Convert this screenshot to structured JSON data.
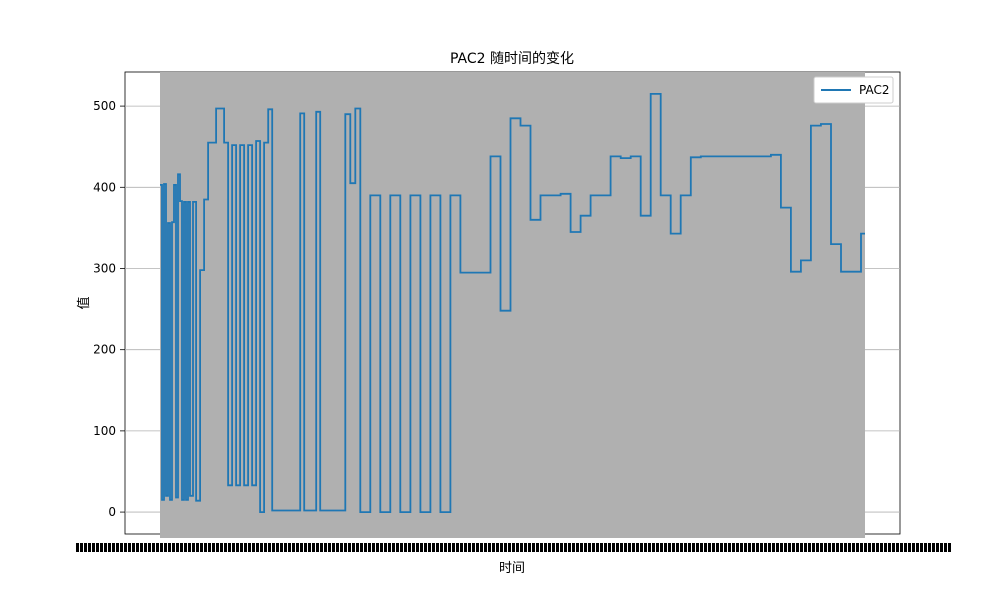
{
  "chart_data": {
    "type": "line",
    "title": "PAC2 随时间的变化",
    "xlabel": "时间",
    "ylabel": "值",
    "ylim": [
      -27,
      542
    ],
    "yticks": [
      0,
      100,
      200,
      300,
      400,
      500
    ],
    "grid": "horizontal",
    "legend_placement": "top-right",
    "colors": {
      "series": "#1f77b4",
      "xtick_band": "#b0b0b0",
      "grid": "#b0b0b0"
    },
    "series": [
      {
        "name": "PAC2",
        "x": [
          0,
          2,
          4,
          6,
          8,
          10,
          12,
          14,
          16,
          18,
          20,
          22,
          24,
          26,
          28,
          30,
          33,
          36,
          40,
          44,
          48,
          52,
          56,
          60,
          64,
          68,
          72,
          76,
          80,
          84,
          88,
          92,
          96,
          100,
          104,
          108,
          112,
          116,
          120,
          124,
          128,
          132,
          136,
          140,
          144,
          148,
          152,
          156,
          160,
          165,
          170,
          175,
          180,
          185,
          190,
          195,
          200,
          210,
          220,
          230,
          240,
          250,
          260,
          270,
          280,
          290,
          300,
          310,
          320,
          330,
          340,
          350,
          360,
          370,
          380,
          390,
          400,
          410,
          420,
          430,
          440,
          450,
          460,
          470,
          480,
          490,
          500,
          510,
          520,
          530,
          540,
          550,
          560,
          570,
          580,
          590,
          600,
          610,
          620,
          630,
          640,
          650,
          660,
          670,
          680,
          690,
          700,
          704
        ],
        "values": [
          403,
          15,
          404,
          20,
          356,
          15,
          357,
          403,
          18,
          416,
          383,
          15,
          382,
          15,
          382,
          20,
          382,
          14,
          298,
          385,
          455,
          455,
          497,
          497,
          455,
          33,
          452,
          33,
          452,
          33,
          452,
          33,
          457,
          0,
          455,
          496,
          2,
          2,
          2,
          2,
          2,
          2,
          2,
          491,
          2,
          2,
          2,
          493,
          2,
          2,
          2,
          2,
          2,
          490,
          405,
          497,
          0,
          390,
          0,
          390,
          0,
          390,
          0,
          390,
          0,
          390,
          295,
          295,
          295,
          438,
          248,
          485,
          476,
          360,
          390,
          390,
          392,
          345,
          365,
          390,
          390,
          438,
          436,
          438,
          365,
          515,
          390,
          343,
          390,
          437,
          438,
          438,
          438,
          438,
          438,
          438,
          438,
          440,
          375,
          296,
          310,
          476,
          478,
          330,
          296,
          296,
          343,
          343
        ]
      }
    ]
  }
}
